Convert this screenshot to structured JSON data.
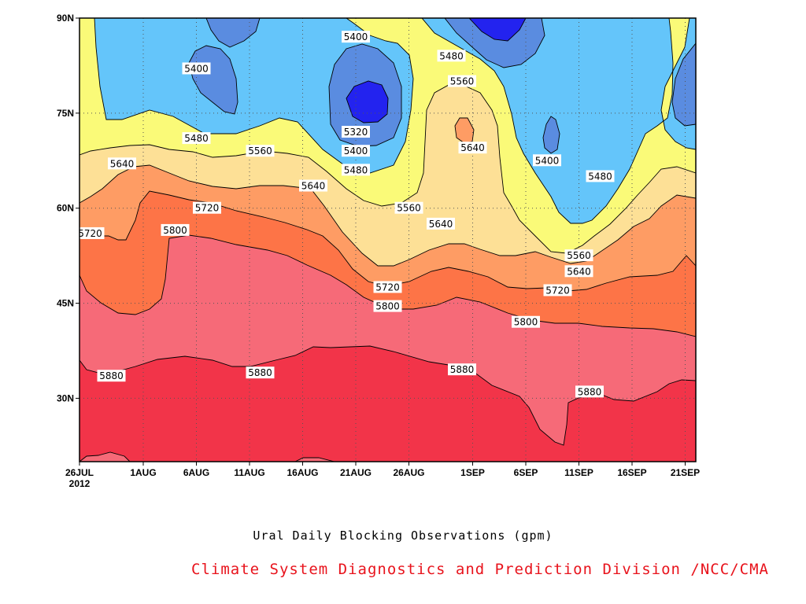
{
  "chart_data": {
    "type": "contour",
    "title": "Ural Daily Blocking Observations (gpm)",
    "xlabel": "",
    "ylabel": "",
    "x_ticks": [
      "26JUL",
      "1AUG",
      "6AUG",
      "11AUG",
      "16AUG",
      "21AUG",
      "26AUG",
      "1SEP",
      "6SEP",
      "11SEP",
      "16SEP",
      "21SEP"
    ],
    "x_year_label": "2012",
    "x_range": [
      "2012-07-26",
      "2012-09-22"
    ],
    "y_ticks": [
      "30N",
      "45N",
      "60N",
      "75N",
      "90N"
    ],
    "ylim": [
      20,
      90
    ],
    "contour_interval": 80,
    "levels": [
      5320,
      5400,
      5480,
      5560,
      5640,
      5720,
      5800,
      5880
    ],
    "grid": "dotted",
    "contour_labels": [
      {
        "text": "5400",
        "x": "2012-08-06",
        "y": 82
      },
      {
        "text": "5400",
        "x": "2012-08-21",
        "y": 87
      },
      {
        "text": "5480",
        "x": "2012-08-30",
        "y": 84
      },
      {
        "text": "5560",
        "x": "2012-08-31",
        "y": 80
      },
      {
        "text": "5320",
        "x": "2012-08-21",
        "y": 72
      },
      {
        "text": "5480",
        "x": "2012-08-06",
        "y": 71
      },
      {
        "text": "5400",
        "x": "2012-08-21",
        "y": 69
      },
      {
        "text": "5640",
        "x": "2012-09-01",
        "y": 69.5
      },
      {
        "text": "5400",
        "x": "2012-09-08",
        "y": 67.5
      },
      {
        "text": "5560",
        "x": "2012-08-12",
        "y": 69
      },
      {
        "text": "5640",
        "x": "2012-07-30",
        "y": 67
      },
      {
        "text": "5480",
        "x": "2012-08-21",
        "y": 66
      },
      {
        "text": "5480",
        "x": "2012-09-13",
        "y": 65
      },
      {
        "text": "5640",
        "x": "2012-08-17",
        "y": 63.5
      },
      {
        "text": "5720",
        "x": "2012-08-07",
        "y": 60
      },
      {
        "text": "5560",
        "x": "2012-08-26",
        "y": 60
      },
      {
        "text": "5800",
        "x": "2012-08-04",
        "y": 56.5
      },
      {
        "text": "5720",
        "x": "2012-07-27",
        "y": 56
      },
      {
        "text": "5640",
        "x": "2012-08-29",
        "y": 57.5
      },
      {
        "text": "5560",
        "x": "2012-09-11",
        "y": 52.5
      },
      {
        "text": "5640",
        "x": "2012-09-11",
        "y": 50
      },
      {
        "text": "5720",
        "x": "2012-08-24",
        "y": 47.5
      },
      {
        "text": "5720",
        "x": "2012-09-09",
        "y": 47
      },
      {
        "text": "5800",
        "x": "2012-08-24",
        "y": 44.5
      },
      {
        "text": "5800",
        "x": "2012-09-06",
        "y": 42
      },
      {
        "text": "5880",
        "x": "2012-08-31",
        "y": 34.5
      },
      {
        "text": "5880",
        "x": "2012-07-29",
        "y": 33.5
      },
      {
        "text": "5880",
        "x": "2012-08-12",
        "y": 34
      },
      {
        "text": "5880",
        "x": "2012-09-12",
        "y": 31
      }
    ],
    "colors": {
      "5320": "#2323ef",
      "5400": "#5a8ce0",
      "5480": "#64c5fa",
      "5560": "#fafa78",
      "5640": "#fde096",
      "5720": "#fe9c64",
      "5800": "#fd7447",
      "5880": "#f66a78",
      "above": "#f23449"
    }
  },
  "footer": {
    "title": "Ural Daily Blocking Observations (gpm)",
    "credit": "Climate System Diagnostics and Prediction Division /NCC/CMA",
    "credit_color": "#e8131c"
  }
}
